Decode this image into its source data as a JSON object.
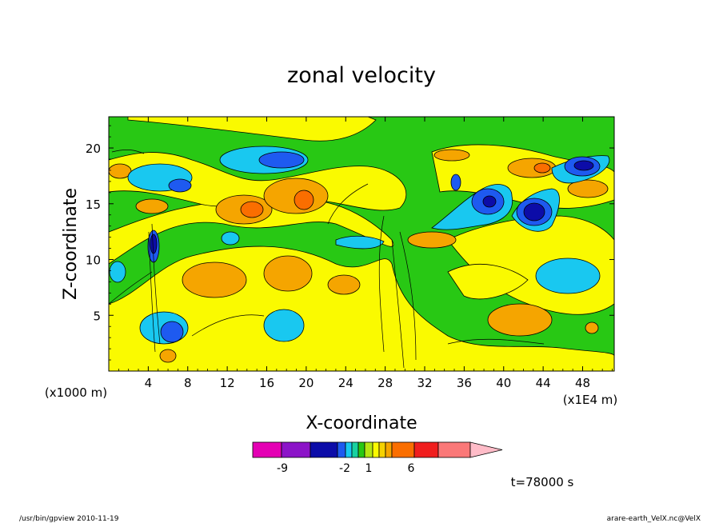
{
  "chart_data": {
    "type": "contour",
    "title": "zonal velocity",
    "xlabel": "X-coordinate",
    "ylabel": "Z-coordinate",
    "x_unit_label": "(x1E4 m)",
    "y_unit_label": "(x1000 m)",
    "x_ticks": [
      "4",
      "8",
      "12",
      "16",
      "20",
      "24",
      "28",
      "32",
      "36",
      "40",
      "44",
      "48"
    ],
    "y_ticks": [
      "5",
      "10",
      "15",
      "20"
    ],
    "xlim": [
      0,
      51.2
    ],
    "ylim": [
      0,
      22.8
    ],
    "colorbar": {
      "colors": [
        "#e400b4",
        "#8c14c8",
        "#0c0ca8",
        "#1e5af0",
        "#19c8f0",
        "#18d2a0",
        "#28c814",
        "#b4e614",
        "#fafa00",
        "#f5d200",
        "#f5a500",
        "#fa6e00",
        "#f01e1e",
        "#fa7878",
        "#ffbcc8"
      ],
      "tick_labels": [
        "-9",
        "-2",
        "1",
        "6"
      ]
    },
    "time_label": "t=78000 s",
    "dominant_field": "green/yellow (~-1 to 1)",
    "features": [
      {
        "sign": "negative",
        "x": 4.5,
        "z": 11,
        "level": "strong"
      },
      {
        "sign": "negative",
        "x": 6.5,
        "z": 3,
        "level": "strong"
      },
      {
        "sign": "negative",
        "x": 18,
        "z": 19,
        "level": "strong"
      },
      {
        "sign": "negative",
        "x": 37,
        "z": 15.5,
        "level": "strong"
      },
      {
        "sign": "negative",
        "x": 43,
        "z": 14.5,
        "level": "strong"
      },
      {
        "sign": "negative",
        "x": 47.5,
        "z": 18,
        "level": "strong"
      },
      {
        "sign": "positive",
        "x": 15,
        "z": 14.5,
        "level": "moderate"
      },
      {
        "sign": "positive",
        "x": 20,
        "z": 15.5,
        "level": "moderate"
      },
      {
        "sign": "positive",
        "x": 44,
        "z": 18,
        "level": "moderate"
      }
    ]
  },
  "footer": {
    "left": "/usr/bin/gpview  2010-11-19",
    "right": "arare-earth_VelX.nc@VelX"
  }
}
